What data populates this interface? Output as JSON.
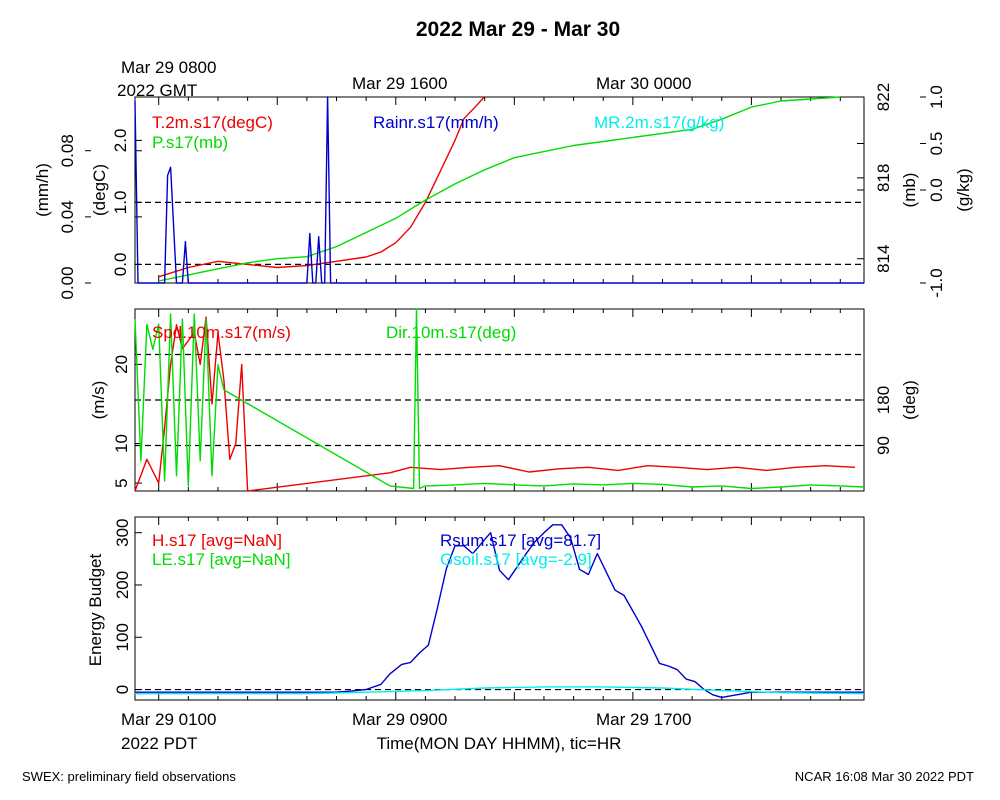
{
  "title": "2022 Mar 29 - Mar 30",
  "footer_left": "SWEX: preliminary field observations",
  "footer_right": "NCAR 16:08 Mar 30 2022 PDT",
  "top_time_labels": [
    {
      "line1": "Mar 29 0800",
      "line2": "2022 GMT",
      "hour": 0
    },
    {
      "line1": "Mar 29 1600",
      "line2": "",
      "hour": 8
    },
    {
      "line1": "Mar 30 0000",
      "line2": "",
      "hour": 16
    }
  ],
  "bottom_time_labels": [
    {
      "line1": "Mar 29 0100",
      "line2": "2022 PDT",
      "hour": 0
    },
    {
      "line1": "Mar 29 0900",
      "line2": "",
      "hour": 8
    },
    {
      "line1": "Mar 29 1700",
      "line2": "",
      "hour": 16
    }
  ],
  "x_axis_label": "Time(MON DAY HHMM), tic=HR",
  "x_range_hours": [
    -0.8,
    23.8
  ],
  "colors": {
    "red": "#ee0000",
    "green": "#00dd00",
    "blue": "#0000cc",
    "cyan": "#00eeee",
    "black": "#000000"
  },
  "chart_data": [
    {
      "type": "line",
      "panel": "top",
      "axes": {
        "left_outer": {
          "label": "(mm/h)",
          "ticks": [
            0.0,
            0.04,
            0.08
          ],
          "tick_labels": [
            "0.00",
            "0.04",
            "0.08"
          ],
          "range": [
            0.0,
            0.1125
          ]
        },
        "left_inner": {
          "label": "(degC)",
          "ticks": [
            0.0,
            1.0,
            2.0
          ],
          "tick_labels": [
            "0.0",
            "1.0",
            "2.0"
          ],
          "range": [
            -0.3,
            2.7
          ]
        },
        "right_inner": {
          "label": "(mb)",
          "ticks": [
            814,
            818,
            822
          ],
          "tick_labels": [
            "814",
            "818",
            "822"
          ],
          "range": [
            812.8,
            822.0
          ]
        },
        "right_outer": {
          "label": "(g/kg)",
          "ticks": [
            -1.0,
            0.0,
            0.5,
            1.0
          ],
          "tick_labels": [
            "-1.0",
            "0.0",
            "0.5",
            "1.0"
          ],
          "range": [
            -1.0,
            1.0
          ]
        }
      },
      "reference_lines": [
        {
          "axis": "left_inner",
          "value": 0.0
        },
        {
          "axis": "left_inner",
          "value": 1.0
        }
      ],
      "series": [
        {
          "name": "T.2m.s17(degC)",
          "color": "red",
          "axis": "left_inner",
          "x": [
            0,
            1,
            2,
            3,
            4,
            5,
            6,
            7,
            7.5,
            8,
            8.5,
            9,
            9.5,
            10,
            10.3,
            10.7,
            11
          ],
          "y": [
            -0.2,
            -0.05,
            0.05,
            0.0,
            -0.05,
            -0.02,
            0.05,
            0.12,
            0.2,
            0.35,
            0.6,
            1.0,
            1.5,
            2.0,
            2.35,
            2.55,
            2.75
          ]
        },
        {
          "name": "P.s17(mb)",
          "color": "green",
          "axis": "right_inner",
          "x": [
            0,
            1,
            2,
            3,
            4,
            5,
            6,
            7,
            8,
            9,
            10,
            11,
            12,
            13,
            14,
            15,
            16,
            17,
            18,
            19,
            20,
            21,
            22,
            23
          ],
          "y": [
            812.9,
            813.2,
            813.5,
            813.8,
            814.0,
            814.1,
            814.6,
            815.3,
            816.0,
            816.9,
            817.7,
            818.4,
            819.0,
            819.3,
            819.6,
            819.8,
            820.0,
            820.2,
            820.4,
            820.9,
            821.5,
            821.8,
            821.9,
            822.0
          ]
        },
        {
          "name": "Rainr.s17(mm/h)",
          "color": "blue",
          "axis": "left_outer",
          "x": [
            -0.8,
            -0.7,
            -0.6,
            -0.5,
            -0.2,
            0.1,
            0.2,
            0.3,
            0.4,
            0.6,
            0.8,
            0.9,
            1.0,
            1.2,
            5.0,
            5.1,
            5.2,
            5.3,
            5.4,
            5.5,
            5.6,
            5.7,
            5.8,
            5.9,
            6.0,
            23.8
          ],
          "y": [
            0.11,
            0.0,
            0.0,
            0.0,
            0.0,
            0.0,
            0.0,
            0.065,
            0.07,
            0.0,
            0.0,
            0.025,
            0.0,
            0.0,
            0.0,
            0.03,
            0.0,
            0.0,
            0.028,
            0.0,
            0.0,
            0.1125,
            0.0,
            0.0,
            0.0,
            0.0
          ]
        },
        {
          "name": "MR.2m.s17(g/kg)",
          "color": "cyan",
          "axis": "right_outer",
          "x": [],
          "y": []
        }
      ]
    },
    {
      "type": "line",
      "panel": "middle",
      "axes": {
        "left": {
          "label": "(m/s)",
          "ticks": [
            5,
            10,
            20
          ],
          "tick_labels": [
            "5",
            "10",
            "20"
          ],
          "range": [
            4.0,
            27.0
          ]
        },
        "right": {
          "label": "(deg)",
          "ticks": [
            90,
            180
          ],
          "tick_labels": [
            "90",
            "180"
          ],
          "range": [
            0,
            360
          ]
        }
      },
      "reference_lines": [
        {
          "axis": "right",
          "value": 90
        },
        {
          "axis": "right",
          "value": 180
        },
        {
          "axis": "right",
          "value": 270
        }
      ],
      "series": [
        {
          "name": "Spd.10m.s17(m/s)",
          "color": "red",
          "axis": "left",
          "x": [
            -0.8,
            -0.6,
            -0.4,
            0.0,
            0.2,
            0.4,
            0.6,
            0.8,
            1.2,
            1.4,
            1.6,
            1.8,
            2.0,
            2.2,
            2.4,
            2.6,
            2.8,
            3.0,
            7.8,
            8.5,
            9.5,
            10.5,
            11.5,
            12.5,
            13.5,
            14.5,
            15.5,
            16.5,
            17.5,
            18.5,
            19.5,
            20.5,
            21.5,
            22.5,
            23.5
          ],
          "y": [
            4.0,
            6.0,
            8.0,
            5.0,
            12.0,
            20.0,
            25.0,
            22.0,
            24.0,
            20.0,
            26.0,
            15.0,
            24.0,
            18.0,
            8.0,
            10.0,
            20.0,
            4.0,
            6.3,
            7.0,
            6.7,
            7.0,
            7.2,
            6.4,
            6.8,
            7.0,
            6.6,
            7.2,
            7.0,
            6.7,
            7.0,
            6.6,
            7.0,
            7.2,
            7.0
          ]
        },
        {
          "name": "Dir.10m.s17(deg)",
          "color": "green",
          "axis": "right",
          "x": [
            -0.8,
            -0.6,
            -0.4,
            -0.2,
            0.0,
            0.2,
            0.4,
            0.6,
            0.8,
            1.0,
            1.2,
            1.4,
            1.6,
            1.8,
            2.0,
            2.2,
            7.8,
            8.6,
            8.7,
            8.8,
            8.9,
            9.0,
            10.0,
            11.0,
            12.0,
            13.0,
            14.0,
            15.0,
            16.0,
            17.0,
            18.0,
            19.0,
            20.0,
            21.0,
            22.0,
            23.0,
            23.8
          ],
          "y": [
            340,
            60,
            330,
            280,
            330,
            20,
            350,
            30,
            340,
            10,
            350,
            60,
            340,
            30,
            250,
            200,
            10,
            5,
            360,
            5,
            8,
            10,
            12,
            15,
            12,
            10,
            14,
            12,
            15,
            13,
            8,
            10,
            5,
            8,
            12,
            10,
            8
          ]
        }
      ]
    },
    {
      "type": "line",
      "panel": "bottom",
      "axes": {
        "left": {
          "label": "Energy Budget",
          "ticks": [
            0,
            100,
            200,
            300
          ],
          "tick_labels": [
            "0",
            "100",
            "200",
            "300"
          ],
          "range": [
            -20,
            330
          ]
        }
      },
      "reference_lines": [
        {
          "axis": "left",
          "value": 0
        }
      ],
      "series": [
        {
          "name": "H.s17 [avg=NaN]",
          "color": "red",
          "axis": "left",
          "x": [],
          "y": []
        },
        {
          "name": "LE.s17 [avg=NaN]",
          "color": "green",
          "axis": "left",
          "x": [],
          "y": []
        },
        {
          "name": "Rsum.s17 [avg=81.7]",
          "color": "blue",
          "axis": "left",
          "x": [
            -0.8,
            0,
            6,
            6.5,
            7,
            7.5,
            7.8,
            8.2,
            8.5,
            8.8,
            9.1,
            9.4,
            9.7,
            10.0,
            10.3,
            10.6,
            10.9,
            11.2,
            11.5,
            11.8,
            12.1,
            12.4,
            12.7,
            13.0,
            13.3,
            13.6,
            13.9,
            14.2,
            14.5,
            14.8,
            15.1,
            15.4,
            15.7,
            16.0,
            16.3,
            16.6,
            16.9,
            17.2,
            17.5,
            17.8,
            18.1,
            18.4,
            18.7,
            19.0,
            19.5,
            20.0,
            23.8
          ],
          "y": [
            -5,
            -5,
            -5,
            -3,
            0,
            10,
            30,
            48,
            52,
            70,
            85,
            155,
            230,
            275,
            275,
            260,
            280,
            300,
            228,
            210,
            235,
            260,
            283,
            300,
            315,
            315,
            290,
            230,
            220,
            260,
            225,
            190,
            180,
            150,
            120,
            85,
            50,
            45,
            38,
            20,
            15,
            0,
            -10,
            -15,
            -10,
            -5,
            -5
          ]
        },
        {
          "name": "Gsoil.s17 [avg=-2.9]",
          "color": "cyan",
          "axis": "left",
          "x": [
            -0.8,
            5,
            7,
            9,
            11,
            13,
            15,
            17,
            19,
            21,
            23.8
          ],
          "y": [
            -8,
            -8,
            -5,
            -2,
            3,
            5,
            5,
            3,
            -2,
            -6,
            -8
          ]
        }
      ]
    }
  ]
}
